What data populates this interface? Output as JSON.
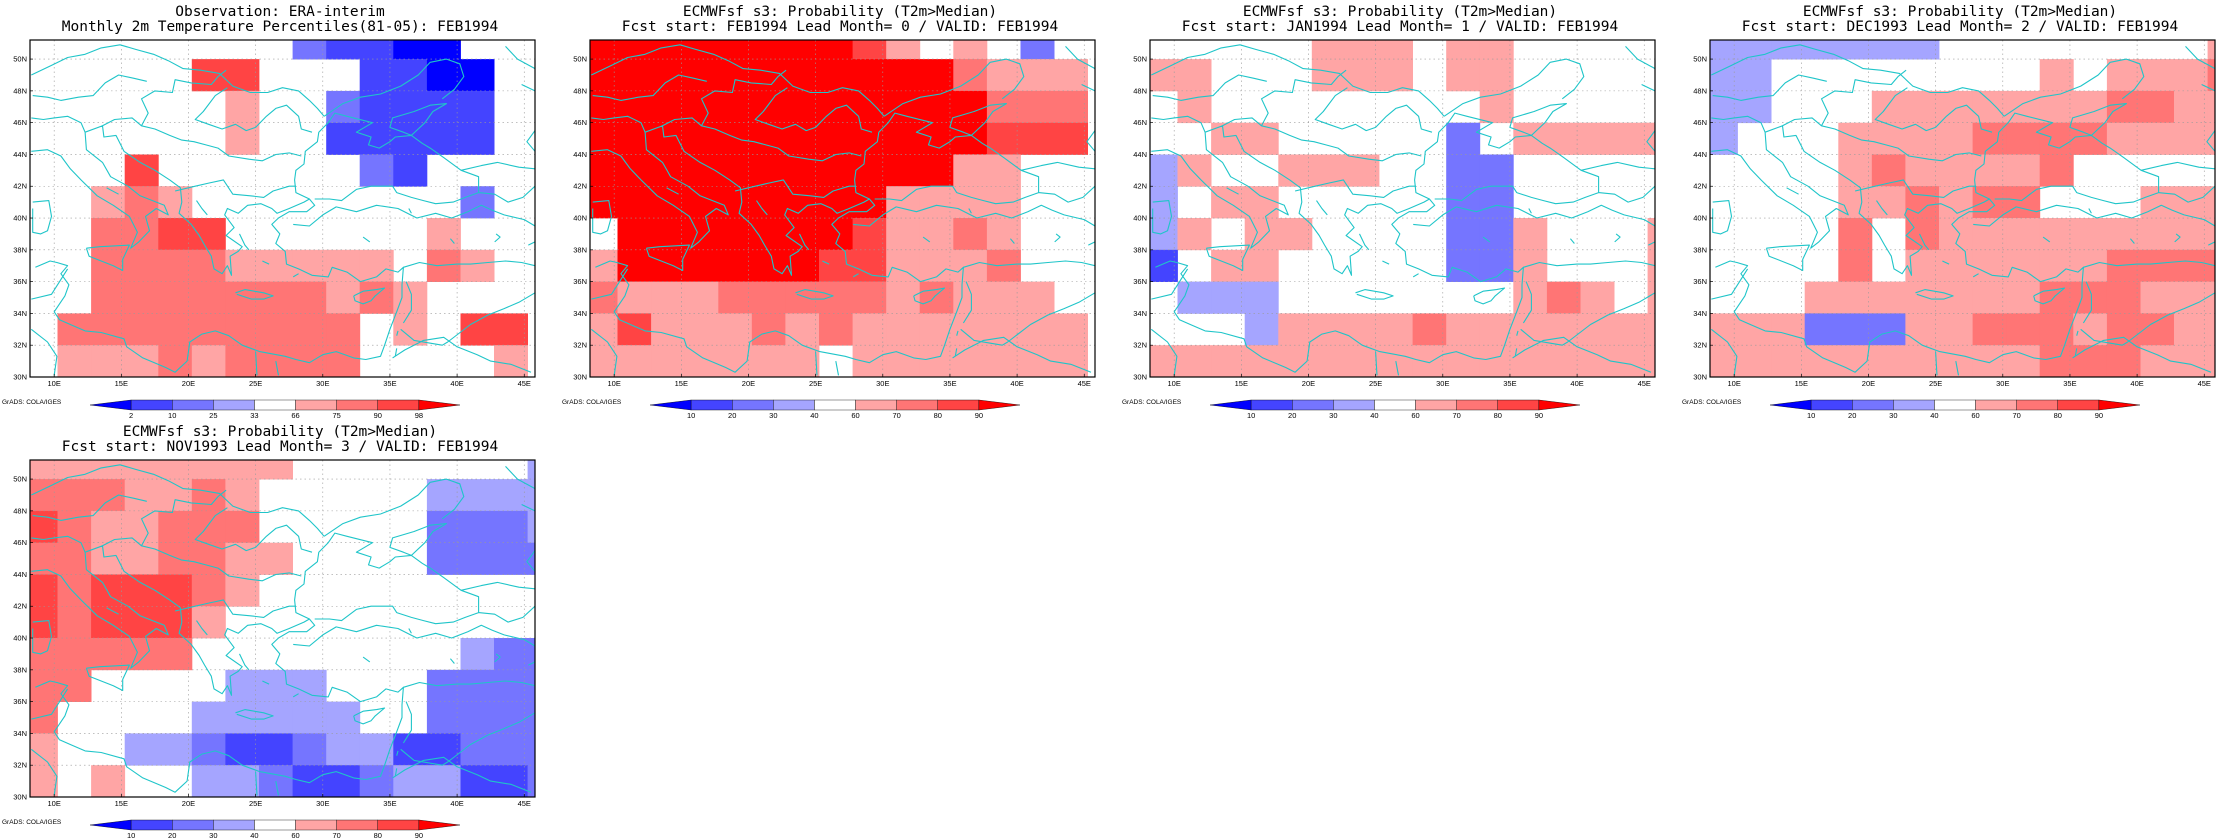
{
  "figure": {
    "credit": "GrADS: COLA/IGES",
    "lon_ticks": [
      "10E",
      "15E",
      "20E",
      "25E",
      "30E",
      "35E",
      "40E",
      "45E"
    ],
    "lat_ticks": [
      "30N",
      "32N",
      "34N",
      "36N",
      "38N",
      "40N",
      "42N",
      "44N",
      "46N",
      "48N",
      "50N"
    ],
    "grid_rows_lat": [
      51,
      49,
      47,
      45,
      43,
      41,
      39,
      37,
      35,
      33,
      31
    ],
    "grid_cols_lon": [
      9,
      11.5,
      14,
      16.5,
      19,
      21.5,
      24,
      26.5,
      29,
      31.5,
      34,
      36.5,
      39,
      41.5,
      44
    ],
    "coast_color": "#1fc5c9",
    "frame_color": "#000000"
  },
  "palettes": {
    "obs": {
      "levels": [
        "2",
        "10",
        "25",
        "33",
        "66",
        "75",
        "90",
        "98"
      ],
      "colors": [
        "#0000ff",
        "#4444ff",
        "#7575ff",
        "#a5a5ff",
        "#ffffff",
        "#ffa5a5",
        "#ff7575",
        "#ff4444",
        "#ff0000"
      ]
    },
    "prob": {
      "levels": [
        "10",
        "20",
        "30",
        "40",
        "60",
        "70",
        "80",
        "90"
      ],
      "colors": [
        "#0000ff",
        "#4444ff",
        "#7575ff",
        "#a5a5ff",
        "#ffffff",
        "#ffa5a5",
        "#ff7575",
        "#ff4444",
        "#ff0000"
      ]
    }
  },
  "panels": [
    {
      "id": "obs",
      "title1": "Observation: ERA-interim",
      "title2": "Monthly 2m Temperature Percentiles(81-05): FEB1994",
      "palette": "obs",
      "grid": [
        "wwwwwwwwcbbaa",
        "wwwwwhhwwwbbaa",
        "wwwwwwfwwcbbbb",
        "wwwwwwfwwbbbbb",
        "wwwhwwwwwwcbww",
        "wwfgfwwwwwwwwcw",
        "wwgghhwwwwwwfw",
        "wwggggfffffwgfw",
        "wwgggggggfgfwww",
        "wgggggggggwfwhh",
        "wfffgfggggwwwwf"
      ]
    },
    {
      "id": "lead0",
      "title1": "ECMWFsf s3: Probability (T2m>Median)",
      "title2": "Fcst start: FEB1994  Lead Month= 0 / VALID: FEB1994",
      "palette": "prob",
      "grid": [
        "iiiiiiiihfwfwc",
        "iiiiiiiiiiigfff",
        "iiiiiiiiiiiiggg",
        "iiiiiiiiiiiihhh",
        "iiiiiiiiiiiffwww",
        "iiiiiiiiiffffwww",
        "wiiiiiiihffgfww",
        "fiiiiiihhfffgww",
        "gfffgggggfgfffw",
        "fhfffgfgfffffff",
        "fffffffwfffffff"
      ]
    },
    {
      "id": "lead1",
      "title1": "ECMWFsf s3: Probability (T2m>Median)",
      "title2": "Fcst start: JAN1994  Lead Month= 1 / VALID: FEB1994",
      "palette": "prob",
      "grid": [
        "wwwwwfffwffwwww",
        "ffwwwfffwffwwww",
        "wfwwwwwwwwfwwww",
        "wwffwwwwwcwfffff",
        "dfwwfffwwccwwww",
        "dwffwwwwwccwwwww",
        "dfwffwwwwccfwwwf",
        "bwffwwwwwccfwwwf",
        "wdddwwwwwwwfgfwf",
        "wwwdffffgfffffff",
        "ffffffffffffffff"
      ]
    },
    {
      "id": "lead2",
      "title1": "ECMWFsf s3: Probability (T2m>Median)",
      "title2": "Fcst start: DEC1993  Lead Month= 2 / VALID: FEB1994",
      "palette": "prob",
      "grid": [
        "dddddddwwwwwwwwf",
        "ddwwwwwwwwfwfffg",
        "ddwwwfffffffggfff",
        "dwwwffffggggffff",
        "wwwwfgffffgwwwww",
        "wwwwffgfggwwwffff",
        "wwwwgwgffffffffff",
        "wwwwgwffffffggggh",
        "wwwfffffffgggfff",
        "fffcccffgggfggfff",
        "ffffffffffgggfffg"
      ]
    },
    {
      "id": "lead3",
      "title1": "ECMWFsf s3: Probability (T2m>Median)",
      "title2": "Fcst start: NOV1993  Lead Month= 3 / VALID: FEB1994",
      "palette": "prob",
      "grid": [
        "ffffffffwwwwwwwd",
        "gggffgfwwwwwdddd",
        "hgffgggwwwwwcccd",
        "ggffggffwwwwcccc",
        "hghhhgfwwwwwwwww",
        "hghhhfwwwwwwwwww",
        "gggggwwwwwwwwdcccd",
        "ggwwwwdddwwwcccccd",
        "gwwwwdddddwwccccd",
        "fwwddcbbcddbbcccd",
        "fwfwwddcbbcddbbccc"
      ]
    }
  ]
}
